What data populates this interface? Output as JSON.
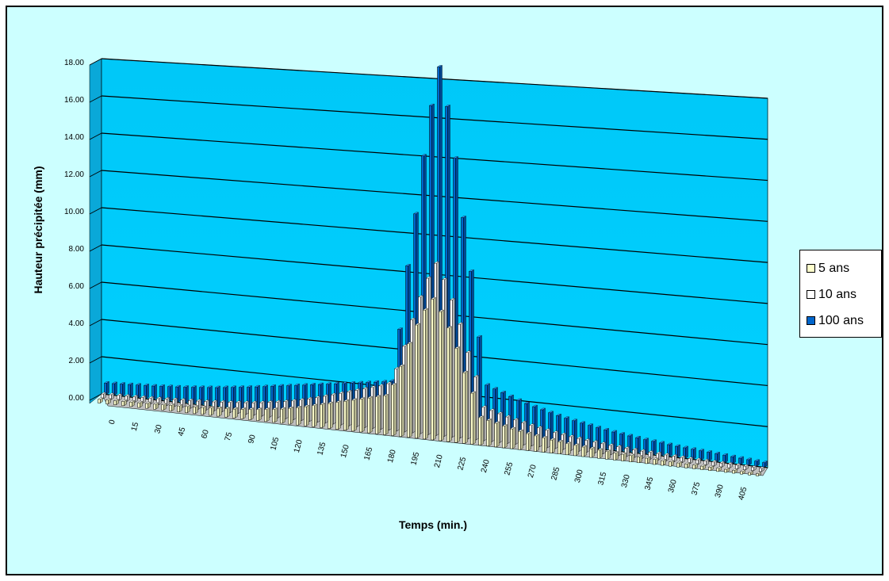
{
  "chart_data": {
    "type": "bar",
    "style": "3d-clustered-column",
    "xlabel": "Temps (min.)",
    "ylabel": "Hauteur précipitée (mm)",
    "ylim": [
      0,
      18
    ],
    "yticks": [
      "0.00",
      "2.00",
      "4.00",
      "6.00",
      "8.00",
      "10.00",
      "12.00",
      "14.00",
      "16.00",
      "18.00"
    ],
    "xticks": [
      "0",
      "15",
      "30",
      "45",
      "60",
      "75",
      "90",
      "105",
      "120",
      "135",
      "150",
      "165",
      "180",
      "195",
      "210",
      "225",
      "240",
      "255",
      "270",
      "285",
      "300",
      "315",
      "330",
      "345",
      "360",
      "375",
      "390",
      "405"
    ],
    "x": [
      0,
      5,
      10,
      15,
      20,
      25,
      30,
      35,
      40,
      45,
      50,
      55,
      60,
      65,
      70,
      75,
      80,
      85,
      90,
      95,
      100,
      105,
      110,
      115,
      120,
      125,
      130,
      135,
      140,
      145,
      150,
      155,
      160,
      165,
      170,
      175,
      180,
      185,
      190,
      195,
      200,
      205,
      210,
      215,
      220,
      225,
      230,
      235,
      240,
      245,
      250,
      255,
      260,
      265,
      270,
      275,
      280,
      285,
      290,
      295,
      300,
      305,
      310,
      315,
      320,
      325,
      330,
      335,
      340,
      345,
      350,
      355,
      360,
      365,
      370,
      375,
      380,
      385,
      390,
      395,
      400,
      405,
      410,
      415
    ],
    "grid": true,
    "legend_position": "right",
    "wall_color": "#00ccff",
    "series": [
      {
        "name": "5 ans",
        "color": "#ffffcc",
        "values": [
          0.2,
          0.21,
          0.22,
          0.23,
          0.24,
          0.25,
          0.26,
          0.27,
          0.28,
          0.3,
          0.31,
          0.33,
          0.35,
          0.37,
          0.39,
          0.41,
          0.44,
          0.47,
          0.5,
          0.54,
          0.58,
          0.63,
          0.68,
          0.74,
          0.82,
          0.9,
          1.0,
          1.1,
          1.2,
          1.3,
          1.4,
          1.5,
          1.6,
          1.7,
          1.8,
          1.9,
          2.0,
          2.6,
          3.6,
          4.8,
          5.8,
          6.6,
          7.2,
          6.6,
          5.8,
          4.8,
          3.6,
          2.6,
          1.4,
          1.3,
          1.2,
          1.1,
          1.0,
          0.92,
          0.85,
          0.78,
          0.72,
          0.66,
          0.61,
          0.56,
          0.52,
          0.48,
          0.44,
          0.41,
          0.38,
          0.35,
          0.33,
          0.31,
          0.29,
          0.27,
          0.25,
          0.23,
          0.22,
          0.21,
          0.2,
          0.19,
          0.18,
          0.17,
          0.16,
          0.15,
          0.14,
          0.13,
          0.12,
          0.11
        ]
      },
      {
        "name": "10 ans",
        "color": "#ffffff",
        "values": [
          0.25,
          0.26,
          0.27,
          0.28,
          0.29,
          0.3,
          0.31,
          0.33,
          0.35,
          0.37,
          0.39,
          0.41,
          0.43,
          0.45,
          0.48,
          0.51,
          0.54,
          0.58,
          0.62,
          0.66,
          0.71,
          0.77,
          0.83,
          0.9,
          0.98,
          1.07,
          1.17,
          1.28,
          1.4,
          1.52,
          1.64,
          1.76,
          1.88,
          2.0,
          2.12,
          2.24,
          2.4,
          3.2,
          4.4,
          5.8,
          7.0,
          8.0,
          8.8,
          8.0,
          7.0,
          5.8,
          4.4,
          3.2,
          1.7,
          1.58,
          1.46,
          1.34,
          1.23,
          1.13,
          1.04,
          0.96,
          0.88,
          0.81,
          0.75,
          0.69,
          0.64,
          0.59,
          0.55,
          0.51,
          0.47,
          0.44,
          0.41,
          0.38,
          0.36,
          0.34,
          0.32,
          0.3,
          0.28,
          0.26,
          0.24,
          0.23,
          0.22,
          0.21,
          0.2,
          0.19,
          0.18,
          0.17,
          0.16,
          0.15
        ]
      },
      {
        "name": "100 ans",
        "color": "#0066cc",
        "values": [
          0.6,
          0.62,
          0.64,
          0.66,
          0.68,
          0.7,
          0.72,
          0.75,
          0.78,
          0.81,
          0.84,
          0.88,
          0.92,
          0.96,
          1.0,
          1.05,
          1.1,
          1.15,
          1.2,
          1.26,
          1.32,
          1.38,
          1.44,
          1.5,
          1.56,
          1.62,
          1.68,
          1.74,
          1.8,
          1.86,
          1.92,
          1.98,
          2.04,
          2.1,
          2.16,
          2.22,
          2.3,
          5.0,
          8.3,
          11.0,
          14.0,
          16.6,
          18.6,
          16.6,
          14.0,
          11.0,
          8.3,
          5.0,
          2.6,
          2.45,
          2.3,
          2.15,
          2.0,
          1.88,
          1.76,
          1.65,
          1.54,
          1.44,
          1.35,
          1.27,
          1.19,
          1.12,
          1.05,
          0.98,
          0.92,
          0.86,
          0.81,
          0.76,
          0.71,
          0.67,
          0.63,
          0.59,
          0.55,
          0.52,
          0.49,
          0.46,
          0.43,
          0.4,
          0.37,
          0.34,
          0.31,
          0.28,
          0.25,
          0.22
        ]
      }
    ]
  }
}
